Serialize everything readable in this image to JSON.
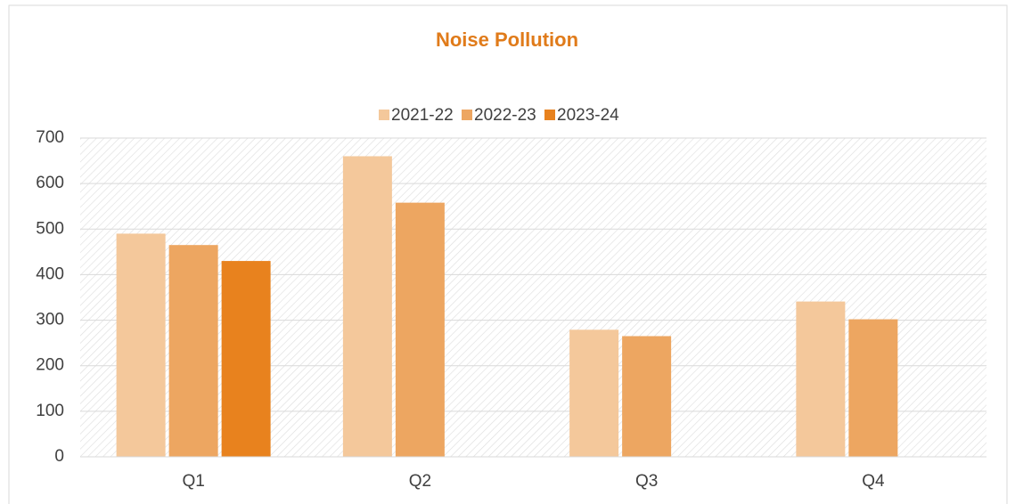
{
  "chart_data": {
    "type": "bar",
    "title": "Noise Pollution",
    "categories": [
      "Q1",
      "Q2",
      "Q3",
      "Q4"
    ],
    "series": [
      {
        "name": "2021-22",
        "color": "#f4c89b",
        "values": [
          490,
          660,
          279,
          341
        ]
      },
      {
        "name": "2022-23",
        "color": "#eda661",
        "values": [
          465,
          558,
          265,
          302
        ]
      },
      {
        "name": "2023-24",
        "color": "#e8821e",
        "values": [
          430,
          null,
          null,
          null
        ]
      }
    ],
    "ylim": [
      0,
      700
    ],
    "yticks": [
      0,
      100,
      200,
      300,
      400,
      500,
      600,
      700
    ],
    "grid": true,
    "legend": "top"
  }
}
